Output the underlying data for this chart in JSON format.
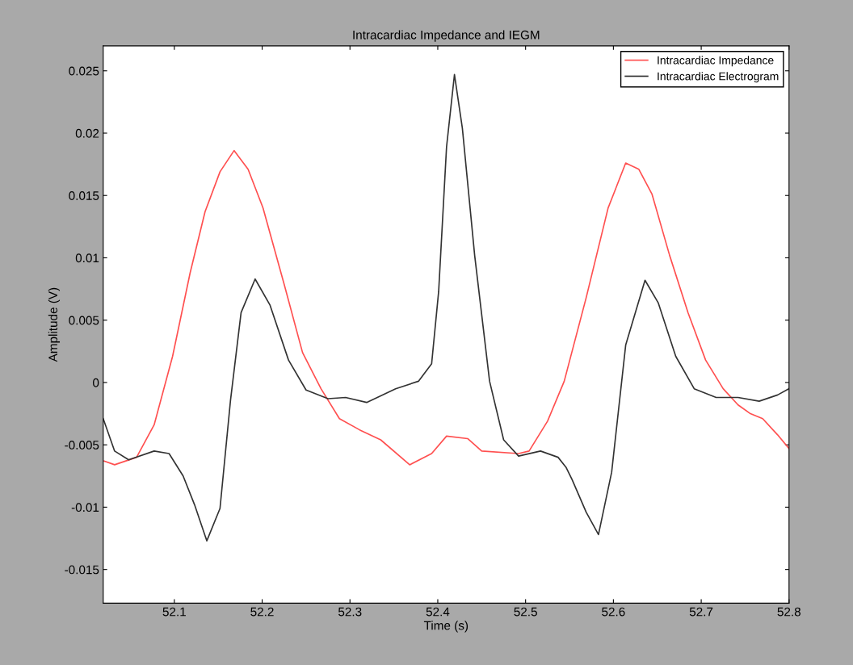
{
  "chart_data": {
    "type": "line",
    "title": "Intracardiac Impedance and IEGM",
    "xlabel": "Time (s)",
    "ylabel": "Amplitude (V)",
    "xlim": [
      52.019,
      52.8
    ],
    "ylim": [
      -0.0177,
      0.027
    ],
    "xticks": [
      52.1,
      52.2,
      52.3,
      52.4,
      52.5,
      52.6,
      52.7,
      52.8
    ],
    "yticks": [
      -0.015,
      -0.01,
      -0.005,
      0,
      0.005,
      0.01,
      0.015,
      0.02,
      0.025
    ],
    "grid": false,
    "legend": "top right",
    "marker": "none",
    "line_style": "solid",
    "series": [
      {
        "name": "Intracardiac Impedance",
        "color": "#ff5050",
        "x": [
          52.02,
          52.032,
          52.057,
          52.077,
          52.098,
          52.118,
          52.135,
          52.152,
          52.168,
          52.184,
          52.201,
          52.225,
          52.246,
          52.267,
          52.288,
          52.311,
          52.335,
          52.368,
          52.393,
          52.41,
          52.434,
          52.45,
          52.492,
          52.504,
          52.525,
          52.544,
          52.569,
          52.594,
          52.614,
          52.629,
          52.644,
          52.664,
          52.685,
          52.705,
          52.725,
          52.742,
          52.756,
          52.77,
          52.787,
          52.8
        ],
        "values": [
          -0.0063,
          -0.0066,
          -0.006,
          -0.0034,
          0.0021,
          0.0088,
          0.0137,
          0.0169,
          0.0186,
          0.0171,
          0.014,
          0.0079,
          0.0024,
          -0.0005,
          -0.0029,
          -0.0038,
          -0.0046,
          -0.0066,
          -0.0057,
          -0.0043,
          -0.0045,
          -0.0055,
          -0.0057,
          -0.0055,
          -0.0031,
          0.0001,
          0.0068,
          0.014,
          0.0176,
          0.0171,
          0.0151,
          0.0102,
          0.0056,
          0.0018,
          -0.0005,
          -0.0018,
          -0.0025,
          -0.0029,
          -0.0042,
          -0.0053
        ]
      },
      {
        "name": "Intracardiac Electrogram",
        "color": "#333333",
        "x": [
          52.019,
          52.032,
          52.048,
          52.077,
          52.094,
          52.11,
          52.123,
          52.137,
          52.152,
          52.164,
          52.176,
          52.192,
          52.209,
          52.23,
          52.25,
          52.275,
          52.295,
          52.319,
          52.352,
          52.378,
          52.393,
          52.401,
          52.41,
          52.419,
          52.428,
          52.442,
          52.459,
          52.475,
          52.492,
          52.517,
          52.537,
          52.546,
          52.553,
          52.569,
          52.583,
          52.598,
          52.614,
          52.636,
          52.651,
          52.671,
          52.692,
          52.717,
          52.742,
          52.766,
          52.787,
          52.8
        ],
        "values": [
          -0.0029,
          -0.0055,
          -0.0062,
          -0.0055,
          -0.0057,
          -0.0075,
          -0.0098,
          -0.0127,
          -0.0101,
          -0.0014,
          0.0056,
          0.0083,
          0.0062,
          0.0018,
          -0.0006,
          -0.0013,
          -0.0012,
          -0.0016,
          -0.0005,
          0.0001,
          0.0015,
          0.0073,
          0.0189,
          0.0247,
          0.0204,
          0.0102,
          0.0001,
          -0.0046,
          -0.0059,
          -0.0055,
          -0.006,
          -0.0068,
          -0.0078,
          -0.0104,
          -0.0122,
          -0.0072,
          0.003,
          0.0082,
          0.0064,
          0.0021,
          -0.0005,
          -0.0012,
          -0.0012,
          -0.0015,
          -0.001,
          -0.0005
        ]
      }
    ]
  }
}
